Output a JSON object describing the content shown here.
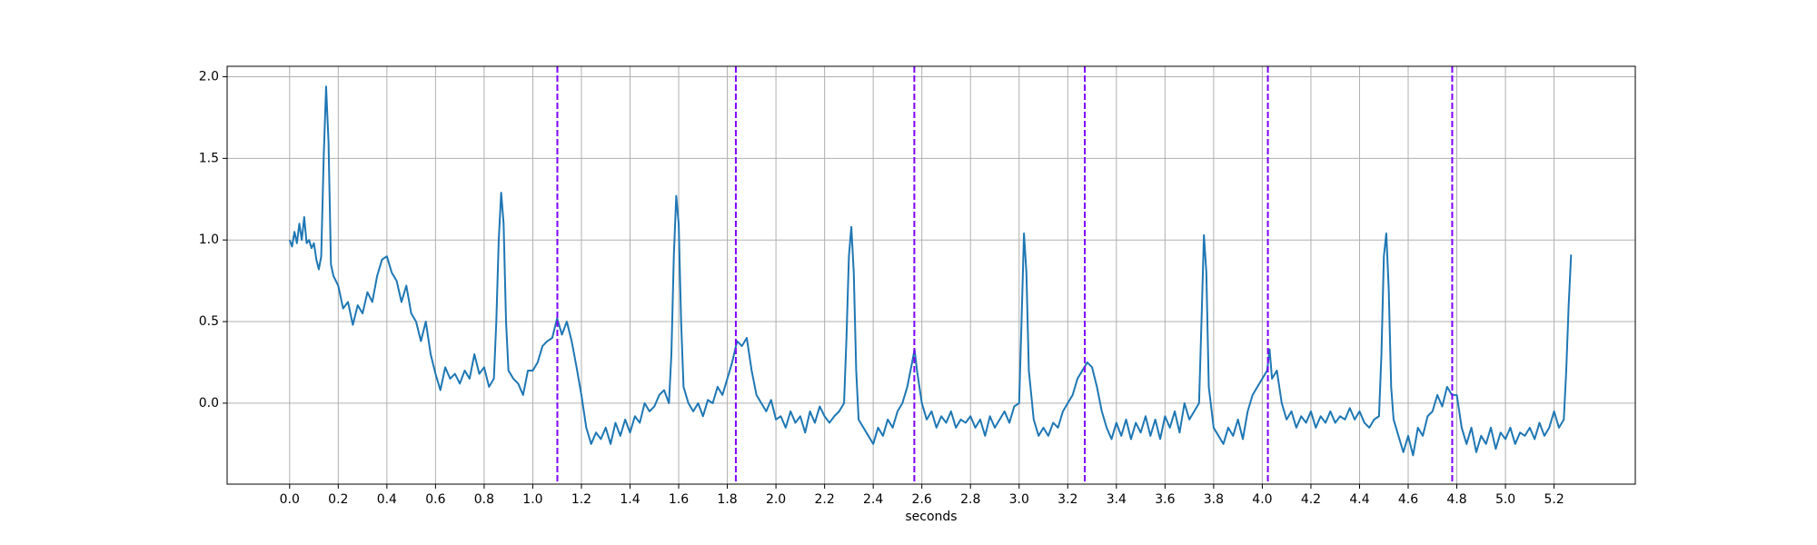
{
  "chart_data": {
    "type": "line",
    "x_label": "seconds",
    "x": [
      0,
      0.01,
      0.02,
      0.03,
      0.04,
      0.05,
      0.06,
      0.07,
      0.08,
      0.09,
      0.1,
      0.11,
      0.12,
      0.13,
      0.14,
      0.15,
      0.16,
      0.17,
      0.18,
      0.2,
      0.22,
      0.24,
      0.26,
      0.28,
      0.3,
      0.32,
      0.34,
      0.36,
      0.38,
      0.4,
      0.42,
      0.44,
      0.46,
      0.48,
      0.5,
      0.52,
      0.54,
      0.56,
      0.58,
      0.6,
      0.62,
      0.64,
      0.66,
      0.68,
      0.7,
      0.72,
      0.74,
      0.76,
      0.78,
      0.8,
      0.82,
      0.84,
      0.85,
      0.86,
      0.87,
      0.88,
      0.89,
      0.9,
      0.92,
      0.94,
      0.96,
      0.98,
      1.0,
      1.02,
      1.04,
      1.06,
      1.08,
      1.1,
      1.12,
      1.14,
      1.16,
      1.18,
      1.2,
      1.22,
      1.24,
      1.26,
      1.28,
      1.3,
      1.32,
      1.34,
      1.36,
      1.38,
      1.4,
      1.42,
      1.44,
      1.46,
      1.48,
      1.5,
      1.52,
      1.54,
      1.56,
      1.57,
      1.58,
      1.59,
      1.6,
      1.61,
      1.62,
      1.64,
      1.66,
      1.68,
      1.7,
      1.72,
      1.74,
      1.76,
      1.78,
      1.8,
      1.82,
      1.84,
      1.86,
      1.88,
      1.9,
      1.92,
      1.94,
      1.96,
      1.98,
      2.0,
      2.02,
      2.04,
      2.06,
      2.08,
      2.1,
      2.12,
      2.14,
      2.16,
      2.18,
      2.2,
      2.22,
      2.24,
      2.26,
      2.28,
      2.29,
      2.3,
      2.31,
      2.32,
      2.33,
      2.34,
      2.36,
      2.38,
      2.4,
      2.42,
      2.44,
      2.46,
      2.48,
      2.5,
      2.52,
      2.54,
      2.56,
      2.57,
      2.58,
      2.6,
      2.62,
      2.64,
      2.66,
      2.68,
      2.7,
      2.72,
      2.74,
      2.76,
      2.78,
      2.8,
      2.82,
      2.84,
      2.86,
      2.88,
      2.9,
      2.92,
      2.94,
      2.96,
      2.98,
      3.0,
      3.01,
      3.02,
      3.03,
      3.04,
      3.06,
      3.08,
      3.1,
      3.12,
      3.14,
      3.16,
      3.18,
      3.2,
      3.22,
      3.24,
      3.26,
      3.28,
      3.3,
      3.32,
      3.34,
      3.36,
      3.38,
      3.4,
      3.42,
      3.44,
      3.46,
      3.48,
      3.5,
      3.52,
      3.54,
      3.56,
      3.58,
      3.6,
      3.62,
      3.64,
      3.66,
      3.68,
      3.7,
      3.72,
      3.74,
      3.75,
      3.76,
      3.77,
      3.78,
      3.8,
      3.82,
      3.84,
      3.86,
      3.88,
      3.9,
      3.92,
      3.94,
      3.96,
      3.98,
      4.0,
      4.02,
      4.03,
      4.04,
      4.06,
      4.08,
      4.1,
      4.12,
      4.14,
      4.16,
      4.18,
      4.2,
      4.22,
      4.24,
      4.26,
      4.28,
      4.3,
      4.32,
      4.34,
      4.36,
      4.38,
      4.4,
      4.42,
      4.44,
      4.46,
      4.48,
      4.49,
      4.5,
      4.51,
      4.52,
      4.53,
      4.54,
      4.56,
      4.58,
      4.6,
      4.62,
      4.64,
      4.66,
      4.68,
      4.7,
      4.72,
      4.74,
      4.76,
      4.78,
      4.8,
      4.82,
      4.84,
      4.86,
      4.88,
      4.9,
      4.92,
      4.94,
      4.96,
      4.98,
      5.0,
      5.02,
      5.04,
      5.06,
      5.08,
      5.1,
      5.12,
      5.14,
      5.16,
      5.18,
      5.2,
      5.22,
      5.24,
      5.25,
      5.26,
      5.27
    ],
    "series": [
      {
        "color": "#1f77b4",
        "values": [
          1.0,
          0.96,
          1.05,
          0.98,
          1.1,
          1.0,
          1.14,
          0.98,
          1.0,
          0.95,
          0.98,
          0.88,
          0.82,
          0.9,
          1.5,
          1.94,
          1.6,
          0.85,
          0.78,
          0.72,
          0.58,
          0.62,
          0.48,
          0.6,
          0.55,
          0.68,
          0.62,
          0.78,
          0.88,
          0.9,
          0.8,
          0.75,
          0.62,
          0.72,
          0.55,
          0.5,
          0.38,
          0.5,
          0.3,
          0.18,
          0.08,
          0.22,
          0.15,
          0.18,
          0.12,
          0.2,
          0.15,
          0.3,
          0.18,
          0.22,
          0.1,
          0.15,
          0.5,
          1.0,
          1.29,
          1.1,
          0.5,
          0.2,
          0.15,
          0.12,
          0.05,
          0.2,
          0.2,
          0.25,
          0.35,
          0.38,
          0.4,
          0.52,
          0.42,
          0.5,
          0.38,
          0.22,
          0.05,
          -0.15,
          -0.25,
          -0.18,
          -0.22,
          -0.15,
          -0.25,
          -0.12,
          -0.2,
          -0.1,
          -0.18,
          -0.08,
          -0.12,
          0.0,
          -0.05,
          -0.02,
          0.05,
          0.08,
          0.0,
          0.3,
          0.9,
          1.27,
          1.1,
          0.5,
          0.1,
          0.0,
          -0.05,
          0.0,
          -0.08,
          0.02,
          0.0,
          0.1,
          0.05,
          0.15,
          0.25,
          0.38,
          0.35,
          0.4,
          0.2,
          0.05,
          0.0,
          -0.05,
          0.02,
          -0.1,
          -0.08,
          -0.15,
          -0.05,
          -0.12,
          -0.08,
          -0.18,
          -0.05,
          -0.12,
          -0.02,
          -0.08,
          -0.12,
          -0.08,
          -0.05,
          0.0,
          0.4,
          0.9,
          1.08,
          0.8,
          0.2,
          -0.1,
          -0.15,
          -0.2,
          -0.25,
          -0.15,
          -0.2,
          -0.1,
          -0.15,
          -0.05,
          0.0,
          0.1,
          0.25,
          0.33,
          0.2,
          0.0,
          -0.1,
          -0.05,
          -0.15,
          -0.08,
          -0.12,
          -0.05,
          -0.15,
          -0.1,
          -0.12,
          -0.08,
          -0.15,
          -0.1,
          -0.2,
          -0.08,
          -0.15,
          -0.1,
          -0.05,
          -0.12,
          -0.02,
          0.0,
          0.5,
          1.04,
          0.8,
          0.2,
          -0.1,
          -0.2,
          -0.15,
          -0.2,
          -0.12,
          -0.15,
          -0.05,
          0.0,
          0.05,
          0.15,
          0.2,
          0.25,
          0.22,
          0.1,
          -0.05,
          -0.15,
          -0.22,
          -0.12,
          -0.2,
          -0.1,
          -0.22,
          -0.12,
          -0.18,
          -0.08,
          -0.2,
          -0.1,
          -0.22,
          -0.08,
          -0.15,
          -0.05,
          -0.18,
          0.0,
          -0.1,
          -0.05,
          0.0,
          0.5,
          1.03,
          0.8,
          0.1,
          -0.15,
          -0.2,
          -0.25,
          -0.15,
          -0.2,
          -0.1,
          -0.22,
          -0.05,
          0.05,
          0.1,
          0.15,
          0.2,
          0.33,
          0.15,
          0.2,
          0.0,
          -0.1,
          -0.05,
          -0.15,
          -0.08,
          -0.12,
          -0.05,
          -0.15,
          -0.08,
          -0.12,
          -0.05,
          -0.12,
          -0.08,
          -0.1,
          -0.03,
          -0.1,
          -0.05,
          -0.12,
          -0.15,
          -0.1,
          -0.08,
          0.3,
          0.9,
          1.04,
          0.7,
          0.1,
          -0.1,
          -0.2,
          -0.3,
          -0.2,
          -0.32,
          -0.15,
          -0.2,
          -0.08,
          -0.05,
          0.05,
          -0.02,
          0.1,
          0.05,
          0.05,
          -0.15,
          -0.25,
          -0.15,
          -0.3,
          -0.2,
          -0.25,
          -0.15,
          -0.28,
          -0.18,
          -0.22,
          -0.15,
          -0.25,
          -0.18,
          -0.2,
          -0.15,
          -0.22,
          -0.12,
          -0.2,
          -0.15,
          -0.05,
          -0.15,
          -0.1,
          0.2,
          0.6,
          0.91
        ]
      }
    ],
    "vlines": {
      "color": "#7f00ff",
      "x": [
        1.101,
        1.835,
        2.569,
        3.27,
        4.023,
        4.781
      ]
    },
    "xlim": [
      -0.257,
      5.534
    ],
    "ylim": [
      -0.496,
      2.064
    ],
    "xticks": [
      {
        "value": 0,
        "label": "0.0"
      },
      0.2,
      0.4,
      0.6,
      0.8,
      {
        "value": 1,
        "label": "1.0"
      },
      1.2,
      1.4,
      1.6,
      1.8,
      {
        "value": 2,
        "label": "2.0"
      },
      2.2,
      2.4,
      2.6,
      2.8,
      {
        "value": 3,
        "label": "3.0"
      },
      3.2,
      3.4,
      3.6,
      3.8,
      {
        "value": 4,
        "label": "4.0"
      },
      4.2,
      4.4,
      4.6,
      4.8,
      {
        "value": 5,
        "label": "5.0"
      },
      5.2
    ],
    "yticks": [
      {
        "value": 0,
        "label": "0.0"
      },
      0.5,
      {
        "value": 1,
        "label": "1.0"
      },
      1.5,
      {
        "value": 2,
        "label": "2.0"
      }
    ],
    "grid": true
  }
}
